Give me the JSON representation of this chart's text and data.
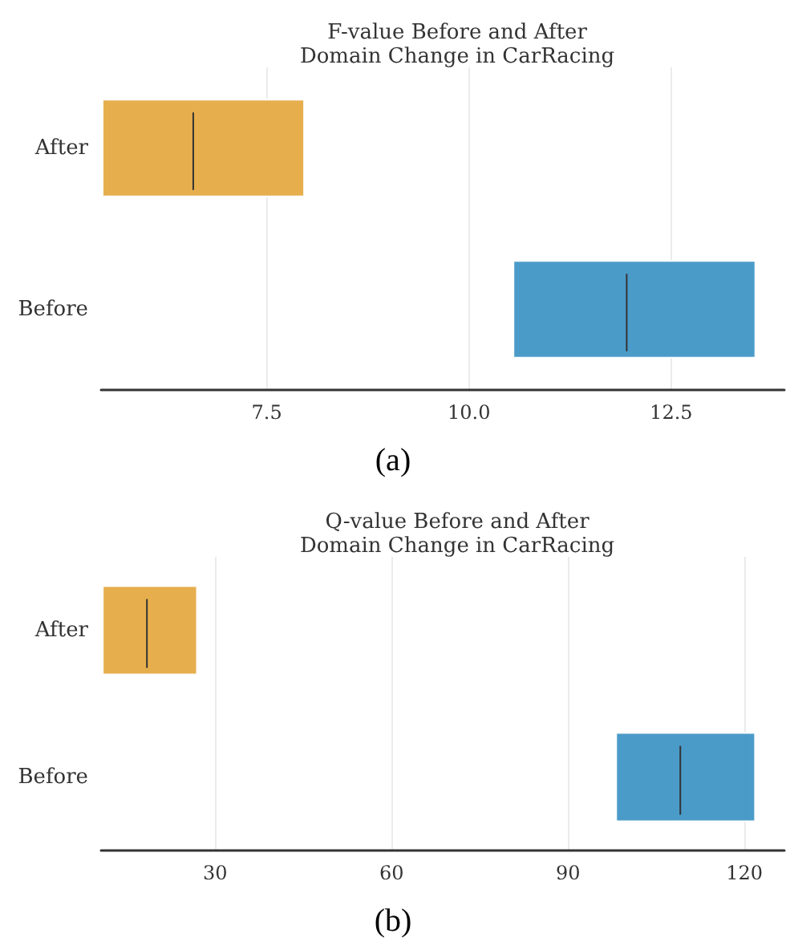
{
  "chart_data": [
    {
      "type": "box",
      "orientation": "horizontal",
      "title": "F-value Before and After\nDomain Change in CarRacing",
      "categories": [
        "After",
        "Before"
      ],
      "colors": [
        "#e5aa43",
        "#4196c6"
      ],
      "boxes": [
        {
          "low": 5.47,
          "q1": 5.47,
          "median": 6.59,
          "q3": 7.96,
          "high": 7.96
        },
        {
          "low": 10.55,
          "q1": 10.55,
          "median": 11.95,
          "q3": 13.54,
          "high": 13.54
        }
      ],
      "xlim": [
        5.45,
        13.9
      ],
      "xticks": [
        7.5,
        {
          "value": 10,
          "label": "10.0"
        },
        12.5
      ],
      "grid": "x",
      "annotations": [
        "(a)"
      ]
    },
    {
      "type": "box",
      "orientation": "horizontal",
      "title": "Q-value Before and After\nDomain Change in CarRacing",
      "categories": [
        "After",
        "Before"
      ],
      "colors": [
        "#e5aa43",
        "#4196c6"
      ],
      "boxes": [
        {
          "low": 10.9,
          "q1": 10.9,
          "median": 18.4,
          "q3": 26.9,
          "high": 26.9
        },
        {
          "low": 98.2,
          "q1": 98.2,
          "median": 109.1,
          "q3": 121.8,
          "high": 121.8
        }
      ],
      "xlim": [
        10.6,
        126.8
      ],
      "xticks": [
        30,
        60,
        90,
        120
      ],
      "grid": "x",
      "annotations": [
        "(b)"
      ]
    }
  ]
}
